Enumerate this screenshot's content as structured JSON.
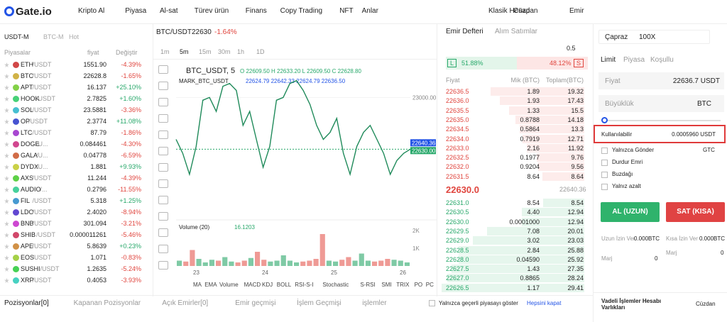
{
  "nav": {
    "logo": "Gate.io",
    "menu": [
      "Kripto Al",
      "Piyasa",
      "Al-sat",
      "Türev ürün",
      "Finans",
      "Copy Trading",
      "NFT",
      "Anlar"
    ],
    "right": [
      "Klasik Hesap",
      "Cüzdan",
      "Emir"
    ]
  },
  "markets": {
    "tabs": [
      "USDT-M",
      "BTC-M",
      "Hot"
    ],
    "headers": [
      "Piyasalar",
      "fiyat",
      "Değiştir"
    ],
    "rows": [
      [
        "ETH",
        "/USDT",
        "1551.90",
        "-4.39%"
      ],
      [
        "BTC",
        "/USDT",
        "22628.8",
        "-1.65%"
      ],
      [
        "APT",
        "/USDT",
        "16.137",
        "+25.10%"
      ],
      [
        "HOOK",
        "/USDT",
        "2.7825",
        "+1.60%"
      ],
      [
        "SOL",
        "/USDT",
        "23.5881",
        "-3.36%"
      ],
      [
        "OP",
        "/USDT",
        "2.3774",
        "+11.08%"
      ],
      [
        "LTC",
        "/USDT",
        "87.79",
        "-1.86%"
      ],
      [
        "DOGE",
        "/U...",
        "0.084461",
        "-4.30%"
      ],
      [
        "GALA",
        "/U...",
        "0.04778",
        "-6.59%"
      ],
      [
        "DYDX",
        "/U...",
        "1.881",
        "+9.93%"
      ],
      [
        "AXS",
        "/USDT",
        "11.244",
        "-4.39%"
      ],
      [
        "AUDIO",
        "/...",
        "0.2796",
        "-11.55%"
      ],
      [
        "FIL",
        "/USDT",
        "5.318",
        "+1.25%"
      ],
      [
        "LDO",
        "/USDT",
        "2.4020",
        "-8.94%"
      ],
      [
        "BNB",
        "/USDT",
        "301.094",
        "-3.21%"
      ],
      [
        "SHIB",
        "/USDT",
        "0.000011261",
        "-5.46%"
      ],
      [
        "APE",
        "/USDT",
        "5.8639",
        "+0.23%"
      ],
      [
        "EOS",
        "/USDT",
        "1.071",
        "-0.83%"
      ],
      [
        "SUSHI",
        "/USDT",
        "1.2635",
        "-5.24%"
      ],
      [
        "XRP",
        "/USDT",
        "0.4053",
        "-3.93%"
      ]
    ]
  },
  "chart": {
    "pair": "BTC/USDT",
    "price": "22630",
    "change": "-1.64%",
    "intervals": [
      "1m",
      "5m",
      "15m",
      "30m",
      "1h",
      "1D"
    ],
    "symbol": "BTC_USDT, 5",
    "ohlc": "O 22609.50  H 22633.20  L 22609.50  C 22628.80",
    "mark_name": "MARK_BTC_USDT",
    "mark_values": "22624.79  22642.33  22624.79  22636.50",
    "price_axis": {
      "ylim": [
        22175,
        23215
      ],
      "yticks": [
        {
          "value": 23000,
          "label": "23000.00"
        }
      ],
      "last_mark": "22640.36",
      "last_price": "22630.00",
      "closes": [
        22700,
        22600,
        22450,
        22650,
        22980,
        23000,
        22900,
        23080,
        23100,
        23050,
        22800,
        22900,
        22700,
        22500,
        22650,
        22980,
        23000,
        23100,
        23120,
        23050,
        22950,
        22800,
        22700,
        22750,
        22850,
        22600,
        22450,
        22650,
        22750,
        22800,
        22700,
        22600,
        22450,
        22550,
        22600,
        22630
      ]
    },
    "volume": {
      "label": "Volume (20)",
      "current": "16.1203",
      "ylim": [
        0,
        2400
      ],
      "yticks": [
        {
          "value": 2000,
          "label": "2K"
        },
        {
          "value": 1000,
          "label": "1K"
        }
      ],
      "values": [
        300,
        250,
        900,
        400,
        200,
        350,
        300,
        500,
        250,
        200,
        300,
        450,
        800,
        350,
        250,
        300,
        600,
        300,
        200,
        250,
        300,
        400,
        1800,
        300,
        250,
        350,
        500,
        300,
        700,
        300,
        250,
        300,
        400,
        350,
        300,
        200
      ]
    },
    "dates": [
      "23",
      "24",
      "25",
      "26"
    ],
    "indicators": [
      "MA",
      "EMA",
      "Volume",
      "MACD",
      "KDJ",
      "BOLL",
      "RSI-S-I",
      "Stochastic",
      "S-RSI",
      "SMI",
      "TRIX",
      "PO",
      "PC"
    ]
  },
  "orderbook": {
    "tabs": [
      "Emir Defteri",
      "Alım Satımlar"
    ],
    "step": "0.5",
    "long": "51.88%",
    "short": "48.12%",
    "long_tag": "L",
    "short_tag": "S",
    "headers": [
      "Fiyat",
      "Mik (BTC)",
      "Toplam(BTC)"
    ],
    "asks": [
      [
        "22636.5",
        "1.89",
        19.32
      ],
      [
        "22636.0",
        "1.93",
        17.43
      ],
      [
        "22635.5",
        "1.33",
        15.5
      ],
      [
        "22635.0",
        "0.8788",
        14.18
      ],
      [
        "22634.5",
        "0.5864",
        13.3
      ],
      [
        "22634.0",
        "0.7919",
        12.71
      ],
      [
        "22633.0",
        "2.16",
        11.92
      ],
      [
        "22632.5",
        "0.1977",
        9.76
      ],
      [
        "22632.0",
        "0.9204",
        9.56
      ],
      [
        "22631.5",
        "8.64",
        8.64
      ]
    ],
    "mid": "22630.0",
    "mark": "22640.36",
    "bids": [
      [
        "22631.0",
        "8.54",
        8.54
      ],
      [
        "22630.5",
        "4.40",
        12.94
      ],
      [
        "22630.0",
        "0.0001000",
        12.94
      ],
      [
        "22629.5",
        "7.08",
        20.01
      ],
      [
        "22629.0",
        "3.02",
        23.03
      ],
      [
        "22628.5",
        "2.84",
        25.88
      ],
      [
        "22628.0",
        "0.04590",
        25.92
      ],
      [
        "22627.5",
        "1.43",
        27.35
      ],
      [
        "22627.0",
        "0.8865",
        28.24
      ],
      [
        "22626.5",
        "1.17",
        29.41
      ]
    ],
    "depth_max": 30
  },
  "order": {
    "margin_mode": "Çapraz",
    "leverage": "100X",
    "types": [
      "Limit",
      "Piyasa",
      "Koşullu"
    ],
    "price_label": "Fiyat",
    "price": "22636.7 USDT",
    "size_label": "Büyüklük",
    "size_unit": "BTC",
    "available_label": "Kullanılabilir",
    "available": "0.0005960 USDT",
    "options": [
      "Yalnızca Gönder",
      "Durdur Emri",
      "Buzdağı",
      "Yalnız azalt"
    ],
    "tif": "GTC",
    "buy": "AL (UZUN)",
    "sell": "SAT (KISA)",
    "long_allow": "Uzun İzin Ver",
    "long_val": "0.000BTC",
    "short_allow": "Kısa İzin Ver",
    "short_val": "0.000BTC",
    "margin": "Marj",
    "margin_long": "0",
    "margin_short": "0",
    "assets": "Vadeli İşlemler Hesabı Varlıkları",
    "wallet": "Cüzdan"
  },
  "bottom": {
    "tabs": [
      "Pozisyonlar[0]",
      "Kapanan Pozisyonlar",
      "Açık Emirler[0]",
      "Emir geçmişi",
      "İşlem Geçmişi",
      "işlemler"
    ],
    "only_current": "Yalnızca geçerli piyasayı göster",
    "close_all": "Hepsini kapat"
  }
}
